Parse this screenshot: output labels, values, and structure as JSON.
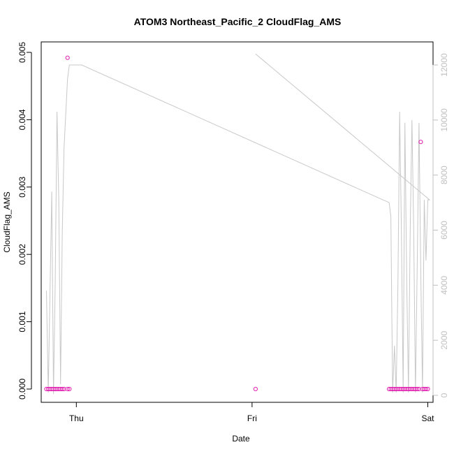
{
  "chart_data": {
    "type": "scatter",
    "title": "ATOM3 Northeast_Pacific_2 CloudFlag_AMS",
    "xlabel": "Date",
    "ylabel": "CloudFlag_AMS",
    "x_ticks": [
      "Thu",
      "Fri",
      "Sat"
    ],
    "xlim": [
      -0.2,
      2.03
    ],
    "ylim": [
      0,
      0.005
    ],
    "y_ticks": [
      "0.000",
      "0.001",
      "0.002",
      "0.003",
      "0.004",
      "0.005"
    ],
    "y2_ticks": [
      "0",
      "2000",
      "4000",
      "6000",
      "8000",
      "10000",
      "12000"
    ],
    "y2lim": [
      0,
      12500
    ],
    "grid": false,
    "colors": {
      "points": "#e020b0",
      "line": "#c8c8c8",
      "right_axis": "#c0c0c0"
    },
    "series": [
      {
        "type": "scatter",
        "axis": "left",
        "x": [
          -0.17,
          -0.16,
          -0.15,
          -0.14,
          -0.13,
          -0.12,
          -0.11,
          -0.1,
          -0.09,
          -0.08,
          -0.07,
          -0.05,
          -0.04,
          -0.05,
          1.02,
          1.78,
          1.79,
          1.8,
          1.81,
          1.82,
          1.83,
          1.84,
          1.85,
          1.86,
          1.87,
          1.88,
          1.89,
          1.9,
          1.91,
          1.92,
          1.93,
          1.94,
          1.95,
          1.96,
          1.97,
          1.98,
          1.99,
          2.0
        ],
        "y": [
          0,
          0,
          0,
          0,
          0,
          0,
          0,
          0,
          0,
          0,
          0,
          0,
          0,
          0.00492,
          0,
          0,
          0,
          0,
          0,
          0,
          0,
          0,
          0,
          0,
          0,
          0,
          0,
          0,
          0,
          0,
          0,
          0,
          0,
          0.00367,
          0,
          0,
          0,
          0
        ]
      },
      {
        "type": "line",
        "axis": "right",
        "x": [
          -0.17,
          -0.16,
          -0.14,
          -0.13,
          -0.12,
          -0.11,
          -0.1,
          -0.09,
          -0.08,
          -0.07,
          -0.05,
          -0.04,
          0.03,
          1.78,
          1.79,
          1.8,
          1.81,
          1.82,
          1.83,
          1.84,
          1.85,
          1.86,
          1.87,
          1.88,
          1.89,
          1.9,
          1.91,
          1.92,
          1.93,
          1.94,
          1.95,
          1.96,
          1.97,
          1.98,
          1.99,
          2.0,
          2.01,
          1.02
        ],
        "y": [
          3800,
          100,
          7400,
          50,
          4200,
          10300,
          7000,
          400,
          6000,
          9000,
          11500,
          12000,
          12000,
          7000,
          6500,
          100,
          1800,
          100,
          4000,
          10300,
          6000,
          100,
          9900,
          4200,
          100,
          6000,
          10000,
          6000,
          100,
          4800,
          9900,
          4500,
          100,
          7100,
          4900,
          7100,
          7100,
          12400
        ]
      }
    ]
  }
}
